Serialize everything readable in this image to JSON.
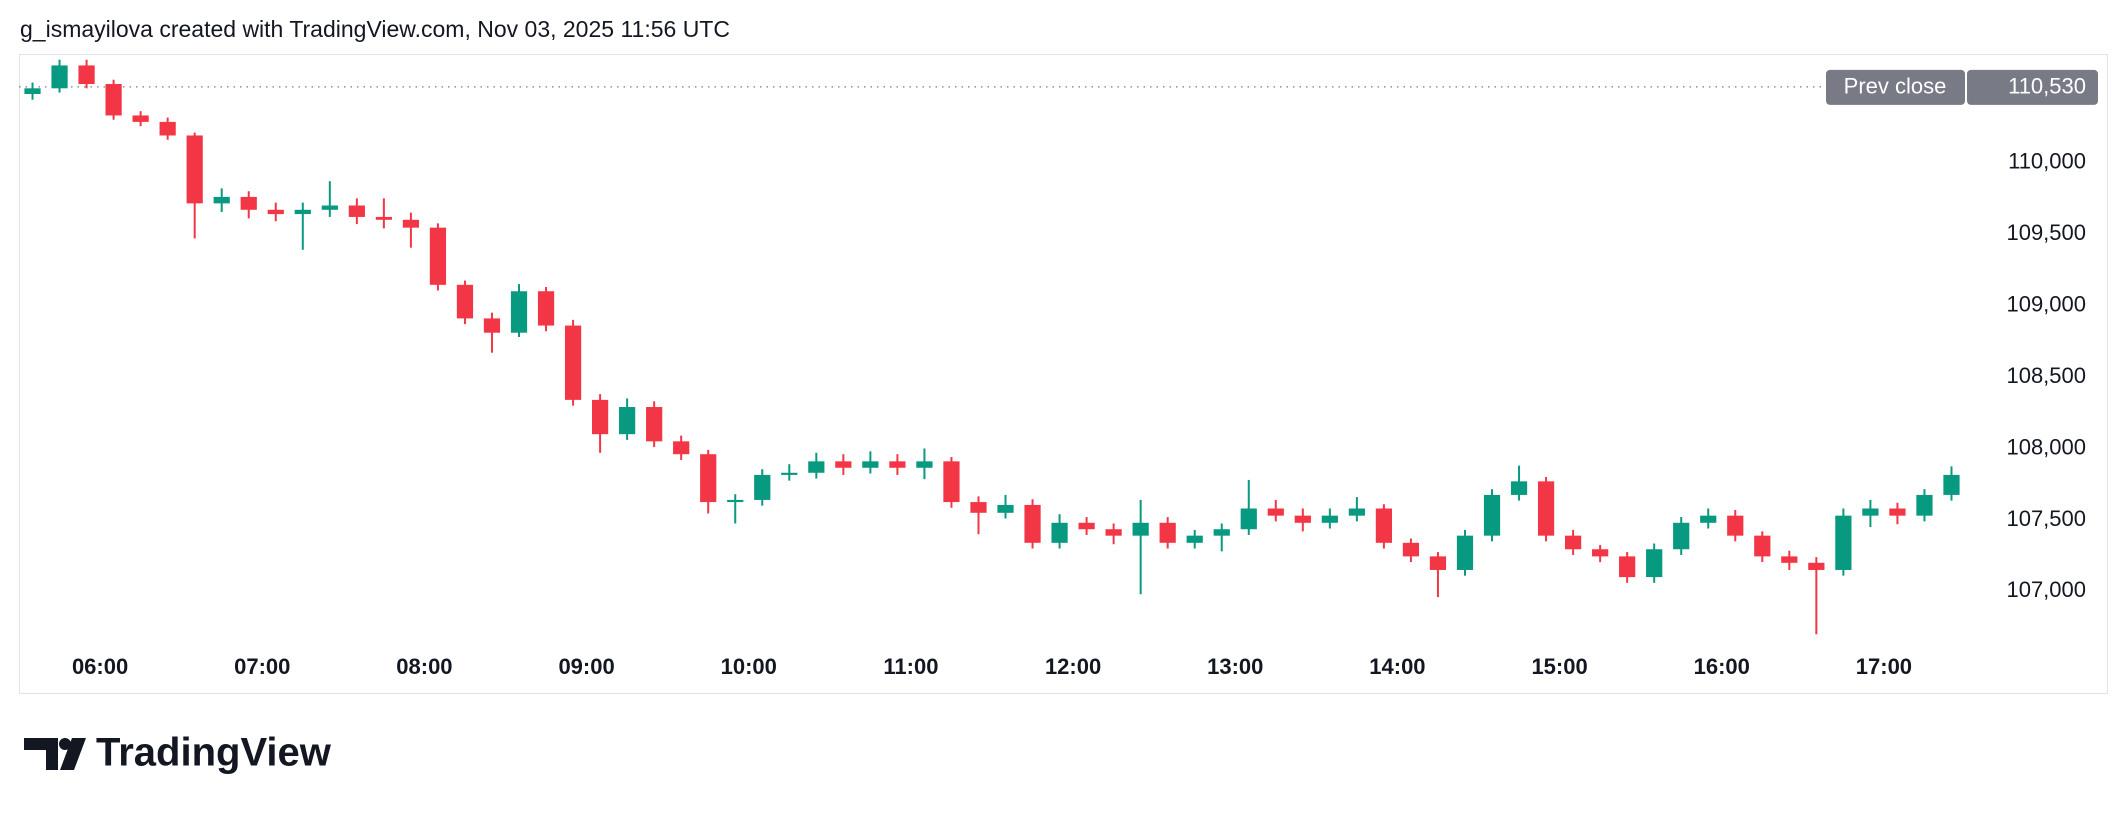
{
  "header": {
    "attribution": "g_ismayilova created with TradingView.com, Nov 03, 2025 11:56 UTC"
  },
  "footer": {
    "brand": "TradingView"
  },
  "chart_data": {
    "type": "candlestick",
    "up_color": "#089981",
    "down_color": "#f23645",
    "bar_minutes": 10,
    "x": [
      "05:30",
      "05:40",
      "05:50",
      "06:00",
      "06:10",
      "06:20",
      "06:30",
      "06:40",
      "06:50",
      "07:00",
      "07:10",
      "07:20",
      "07:30",
      "07:40",
      "07:50",
      "08:00",
      "08:10",
      "08:20",
      "08:30",
      "08:40",
      "08:50",
      "09:00",
      "09:10",
      "09:20",
      "09:30",
      "09:40",
      "09:50",
      "10:00",
      "10:10",
      "10:20",
      "10:30",
      "10:40",
      "10:50",
      "11:00",
      "11:10",
      "11:20",
      "11:30",
      "11:40",
      "11:50",
      "12:00",
      "12:10",
      "12:20",
      "12:30",
      "12:40",
      "12:50",
      "13:00",
      "13:10",
      "13:20",
      "13:30",
      "13:40",
      "13:50",
      "14:00",
      "14:10",
      "14:20",
      "14:30",
      "14:40",
      "14:50",
      "15:00",
      "15:10",
      "15:20",
      "15:30",
      "15:40",
      "15:50",
      "16:00",
      "16:10",
      "16:20",
      "16:30",
      "16:40",
      "16:50",
      "17:00",
      "17:10",
      "17:20"
    ],
    "open": [
      110480,
      110520,
      110680,
      110550,
      110330,
      110285,
      110190,
      109715,
      109760,
      109670,
      109640,
      109670,
      109700,
      109620,
      109600,
      109545,
      109145,
      108910,
      108810,
      109100,
      108860,
      108340,
      108100,
      108290,
      108050,
      107960,
      107625,
      107640,
      107815,
      107830,
      107910,
      107865,
      107910,
      107865,
      107910,
      107625,
      107550,
      107605,
      107340,
      107480,
      107435,
      107390,
      107480,
      107340,
      107390,
      107435,
      107580,
      107530,
      107480,
      107530,
      107580,
      107340,
      107245,
      107150,
      107390,
      107675,
      107770,
      107390,
      107295,
      107245,
      107100,
      107295,
      107480,
      107530,
      107390,
      107245,
      107200,
      107150,
      107530,
      107580,
      107530,
      107675
    ],
    "high": [
      110560,
      110720,
      110720,
      110580,
      110360,
      110315,
      110210,
      109820,
      109800,
      109720,
      109720,
      109870,
      109750,
      109750,
      109650,
      109575,
      109175,
      108950,
      109150,
      109130,
      108900,
      108380,
      108350,
      108330,
      108090,
      107990,
      107680,
      107855,
      107890,
      107970,
      107960,
      107980,
      107960,
      108000,
      107940,
      107665,
      107675,
      107645,
      107540,
      107520,
      107475,
      107640,
      107520,
      107430,
      107475,
      107780,
      107640,
      107580,
      107580,
      107660,
      107610,
      107370,
      107275,
      107430,
      107715,
      107880,
      107800,
      107430,
      107325,
      107275,
      107335,
      107520,
      107580,
      107570,
      107420,
      107285,
      107240,
      107580,
      107640,
      107620,
      107715,
      107875
    ],
    "low": [
      110440,
      110490,
      110520,
      110300,
      110255,
      110160,
      109470,
      109655,
      109610,
      109590,
      109390,
      109620,
      109570,
      109540,
      109405,
      109105,
      108870,
      108670,
      108780,
      108820,
      108300,
      107970,
      108060,
      108010,
      107920,
      107545,
      107475,
      107600,
      107775,
      107790,
      107815,
      107825,
      107815,
      107785,
      107585,
      107400,
      107510,
      107300,
      107300,
      107395,
      107330,
      106980,
      107300,
      107300,
      107280,
      107395,
      107490,
      107420,
      107440,
      107490,
      107300,
      107205,
      106960,
      107110,
      107350,
      107635,
      107350,
      107255,
      107205,
      107060,
      107060,
      107255,
      107440,
      107350,
      107205,
      107150,
      106700,
      107110,
      107450,
      107470,
      107490,
      107635
    ],
    "close": [
      110520,
      110680,
      110550,
      110330,
      110285,
      110190,
      109715,
      109760,
      109670,
      109640,
      109670,
      109700,
      109620,
      109600,
      109545,
      109145,
      108910,
      108810,
      109100,
      108860,
      108340,
      108100,
      108290,
      108050,
      107960,
      107625,
      107640,
      107815,
      107830,
      107910,
      107865,
      107910,
      107865,
      107910,
      107625,
      107550,
      107605,
      107340,
      107480,
      107435,
      107390,
      107480,
      107340,
      107390,
      107435,
      107580,
      107530,
      107480,
      107530,
      107580,
      107340,
      107245,
      107150,
      107390,
      107675,
      107770,
      107390,
      107295,
      107245,
      107100,
      107295,
      107480,
      107530,
      107390,
      107245,
      107200,
      107150,
      107530,
      107580,
      107530,
      107675,
      107815
    ],
    "xlim": [
      "05:30",
      "17:30"
    ],
    "xticks": [
      "06:00",
      "07:00",
      "08:00",
      "09:00",
      "10:00",
      "11:00",
      "12:00",
      "13:00",
      "14:00",
      "15:00",
      "16:00",
      "17:00"
    ],
    "ylim": [
      106590,
      110760
    ],
    "yticks": [
      {
        "value": 107000,
        "label": "107,000"
      },
      {
        "value": 107500,
        "label": "107,500"
      },
      {
        "value": 108000,
        "label": "108,000"
      },
      {
        "value": 108500,
        "label": "108,500"
      },
      {
        "value": 109000,
        "label": "109,000"
      },
      {
        "value": 109500,
        "label": "109,500"
      },
      {
        "value": 110000,
        "label": "110,000"
      }
    ],
    "prev_close": {
      "name": "Prev close",
      "value": 110530,
      "label": "110,530"
    }
  }
}
